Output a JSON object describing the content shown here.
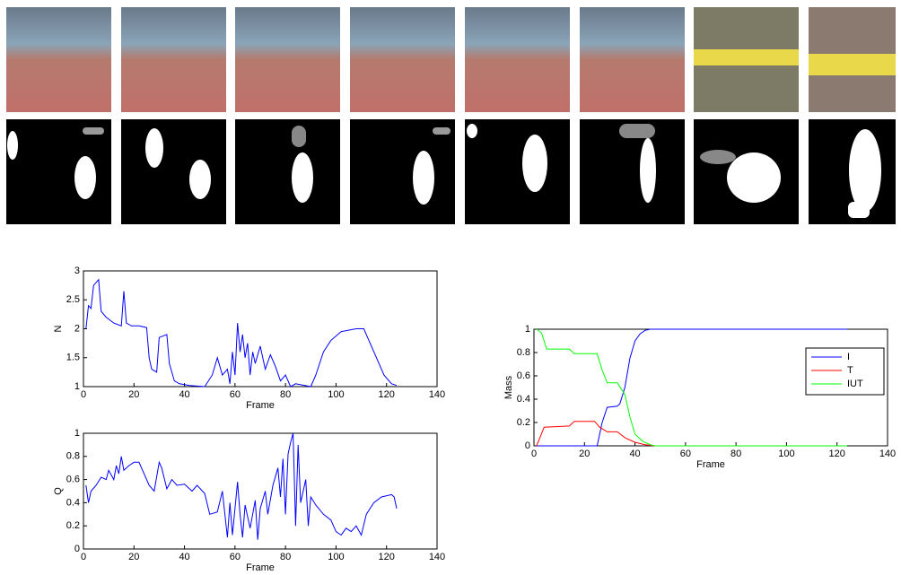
{
  "chart_data": [
    {
      "type": "line",
      "xlabel": "Frame",
      "ylabel": "N",
      "color": "#0000ff",
      "x": [
        1,
        2,
        3,
        4,
        6,
        7,
        9,
        12,
        15,
        16,
        17,
        19,
        22,
        25,
        26,
        27,
        29,
        30,
        33,
        34,
        36,
        38,
        42,
        48,
        51,
        53,
        55,
        57,
        58,
        59,
        60,
        61,
        62,
        63,
        64,
        65,
        66,
        67,
        68,
        70,
        72,
        74,
        76,
        78,
        80,
        82,
        84,
        90,
        92,
        95,
        98,
        102,
        108,
        111,
        113,
        116,
        119,
        122,
        124
      ],
      "values": [
        2.0,
        2.4,
        2.35,
        2.75,
        2.85,
        2.3,
        2.2,
        2.1,
        2.05,
        2.65,
        2.1,
        2.05,
        2.05,
        2.02,
        1.5,
        1.3,
        1.25,
        1.85,
        1.9,
        1.4,
        1.1,
        1.05,
        1.02,
        1.0,
        1.2,
        1.5,
        1.2,
        1.3,
        1.05,
        1.6,
        1.2,
        2.1,
        1.6,
        1.9,
        1.5,
        1.75,
        1.2,
        1.6,
        1.4,
        1.7,
        1.3,
        1.55,
        1.35,
        1.1,
        1.2,
        1.0,
        1.05,
        1.0,
        1.2,
        1.6,
        1.8,
        1.95,
        2.0,
        2.0,
        1.8,
        1.5,
        1.2,
        1.05,
        1.02
      ],
      "xlim": [
        0,
        140
      ],
      "xticks": [
        0,
        20,
        40,
        60,
        80,
        100,
        120,
        140
      ],
      "ylim": [
        1,
        3
      ],
      "yticks": [
        1,
        1.5,
        2,
        2.5,
        3
      ]
    },
    {
      "type": "line",
      "xlabel": "Frame",
      "ylabel": "Q",
      "color": "#0000ff",
      "x": [
        1,
        2,
        3,
        5,
        7,
        9,
        10,
        12,
        13,
        14,
        15,
        16,
        18,
        20,
        22,
        24,
        26,
        28,
        30,
        31,
        33,
        35,
        37,
        40,
        43,
        45,
        48,
        50,
        53,
        55,
        57,
        58,
        59,
        61,
        62,
        63,
        64,
        66,
        68,
        69,
        70,
        72,
        73,
        75,
        77,
        78,
        79,
        80,
        81,
        82,
        83,
        84,
        85,
        86,
        88,
        89,
        90,
        92,
        95,
        98,
        100,
        102,
        104,
        106,
        108,
        110,
        112,
        115,
        118,
        122,
        123,
        124
      ],
      "values": [
        0.55,
        0.4,
        0.5,
        0.55,
        0.62,
        0.6,
        0.68,
        0.6,
        0.72,
        0.65,
        0.8,
        0.68,
        0.72,
        0.75,
        0.75,
        0.65,
        0.55,
        0.5,
        0.75,
        0.7,
        0.52,
        0.6,
        0.55,
        0.56,
        0.5,
        0.55,
        0.48,
        0.3,
        0.32,
        0.5,
        0.1,
        0.4,
        0.12,
        0.58,
        0.3,
        0.1,
        0.38,
        0.18,
        0.42,
        0.08,
        0.35,
        0.5,
        0.3,
        0.55,
        0.7,
        0.45,
        0.78,
        0.3,
        0.82,
        0.92,
        1.0,
        0.2,
        0.9,
        0.4,
        0.6,
        0.2,
        0.45,
        0.38,
        0.3,
        0.25,
        0.15,
        0.12,
        0.18,
        0.15,
        0.2,
        0.12,
        0.3,
        0.4,
        0.45,
        0.47,
        0.45,
        0.35
      ],
      "xlim": [
        0,
        140
      ],
      "xticks": [
        0,
        20,
        40,
        60,
        80,
        100,
        120,
        140
      ],
      "ylim": [
        0,
        1
      ],
      "yticks": [
        0,
        0.2,
        0.4,
        0.6,
        0.8,
        1
      ]
    },
    {
      "type": "line",
      "xlabel": "Frame",
      "ylabel": "Mass",
      "legend": "northeast",
      "series": [
        {
          "name": "I",
          "color": "#0000ff",
          "x": [
            1,
            25,
            27,
            29,
            33,
            34,
            36,
            38,
            40,
            42,
            44,
            46,
            124
          ],
          "values": [
            0,
            0,
            0.2,
            0.33,
            0.34,
            0.36,
            0.5,
            0.75,
            0.9,
            0.96,
            0.99,
            1,
            1
          ]
        },
        {
          "name": "T",
          "color": "#ff0000",
          "x": [
            1,
            2,
            4,
            14,
            16,
            24,
            26,
            29,
            33,
            36,
            40,
            44,
            48,
            124
          ],
          "values": [
            0,
            0.05,
            0.16,
            0.17,
            0.21,
            0.21,
            0.16,
            0.12,
            0.12,
            0.07,
            0.03,
            0.01,
            0,
            0
          ]
        },
        {
          "name": "IUT",
          "color": "#00ff00",
          "x": [
            1,
            3,
            5,
            14,
            16,
            25,
            27,
            29,
            33,
            36,
            38,
            40,
            43,
            46,
            48,
            124
          ],
          "values": [
            1,
            0.97,
            0.83,
            0.83,
            0.79,
            0.79,
            0.65,
            0.54,
            0.54,
            0.44,
            0.25,
            0.1,
            0.04,
            0.01,
            0,
            0
          ]
        }
      ],
      "xlim": [
        0,
        140
      ],
      "xticks": [
        0,
        20,
        40,
        60,
        80,
        100,
        120,
        140
      ],
      "ylim": [
        0,
        1
      ],
      "yticks": [
        0,
        0.2,
        0.4,
        0.6,
        0.8,
        1
      ]
    }
  ]
}
